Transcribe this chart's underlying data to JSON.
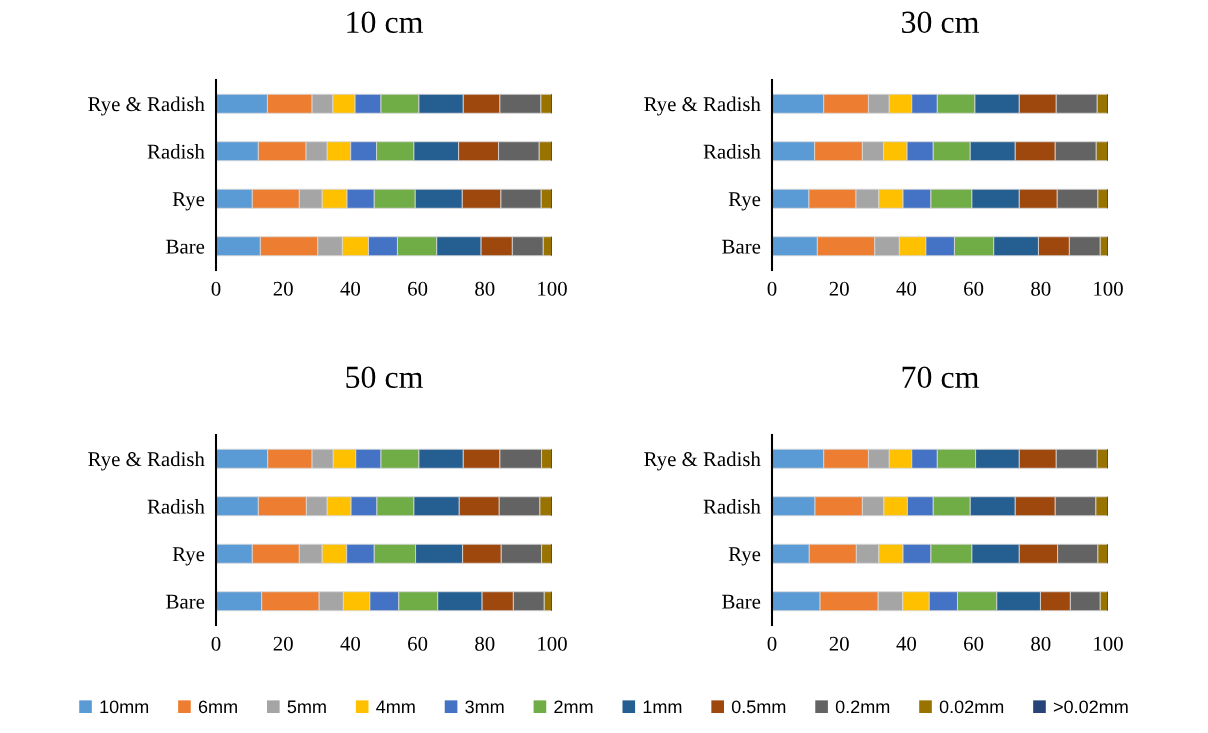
{
  "chart_data": [
    {
      "type": "bar",
      "orientation": "horizontal",
      "stacked": true,
      "title": "10 cm",
      "categories": [
        "Rye & Radish",
        "Radish",
        "Rye",
        "Bare"
      ],
      "xlim": [
        0,
        100
      ],
      "xticks": [
        0,
        20,
        40,
        60,
        80,
        100
      ],
      "grid": false,
      "legend": "bottom",
      "series": [
        {
          "name": "10mm",
          "color": "#5b9bd5",
          "values": [
            15.3,
            12.6,
            10.8,
            13.2
          ]
        },
        {
          "name": "6mm",
          "color": "#ed7d31",
          "values": [
            13.3,
            14.2,
            14.0,
            17.1
          ]
        },
        {
          "name": "5mm",
          "color": "#a5a5a5",
          "values": [
            6.2,
            6.3,
            6.8,
            7.3
          ]
        },
        {
          "name": "4mm",
          "color": "#ffc000",
          "values": [
            6.6,
            7.0,
            7.4,
            7.8
          ]
        },
        {
          "name": "3mm",
          "color": "#4472c4",
          "values": [
            7.7,
            7.7,
            8.1,
            8.6
          ]
        },
        {
          "name": "2mm",
          "color": "#70ad47",
          "values": [
            11.3,
            11.1,
            12.2,
            11.7
          ]
        },
        {
          "name": "1mm",
          "color": "#255e91",
          "values": [
            13.2,
            13.3,
            14.0,
            13.2
          ]
        },
        {
          "name": "0.5mm",
          "color": "#9e480e",
          "values": [
            10.9,
            11.9,
            11.5,
            9.3
          ]
        },
        {
          "name": "0.2mm",
          "color": "#636363",
          "values": [
            12.2,
            12.1,
            12.0,
            9.2
          ]
        },
        {
          "name": "0.02mm",
          "color": "#997300",
          "values": [
            3.3,
            3.8,
            3.2,
            2.6
          ]
        },
        {
          "name": ">0.02mm",
          "color": "#264478",
          "values": [
            0,
            0,
            0,
            0
          ]
        }
      ]
    },
    {
      "type": "bar",
      "orientation": "horizontal",
      "stacked": true,
      "title": "30 cm",
      "categories": [
        "Rye & Radish",
        "Radish",
        "Rye",
        "Bare"
      ],
      "xlim": [
        0,
        100
      ],
      "xticks": [
        0,
        20,
        40,
        60,
        80,
        100
      ],
      "grid": false,
      "series": [
        {
          "color": "#5b9bd5",
          "values": [
            15.4,
            12.7,
            11.0,
            13.5
          ]
        },
        {
          "color": "#ed7d31",
          "values": [
            13.3,
            14.2,
            14.0,
            17.1
          ]
        },
        {
          "color": "#a5a5a5",
          "values": [
            6.2,
            6.3,
            6.8,
            7.3
          ]
        },
        {
          "color": "#ffc000",
          "values": [
            6.7,
            7.0,
            7.2,
            7.9
          ]
        },
        {
          "color": "#4472c4",
          "values": [
            7.6,
            7.8,
            8.3,
            8.5
          ]
        },
        {
          "color": "#70ad47",
          "values": [
            11.2,
            11.0,
            12.2,
            11.7
          ]
        },
        {
          "color": "#255e91",
          "values": [
            13.2,
            13.4,
            14.1,
            13.3
          ]
        },
        {
          "color": "#9e480e",
          "values": [
            11.0,
            11.9,
            11.3,
            9.2
          ]
        },
        {
          "color": "#636363",
          "values": [
            12.2,
            12.2,
            12.1,
            9.2
          ]
        },
        {
          "color": "#997300",
          "values": [
            3.2,
            3.5,
            3.0,
            2.3
          ]
        },
        {
          "color": "#264478",
          "values": [
            0,
            0,
            0,
            0
          ]
        }
      ]
    },
    {
      "type": "bar",
      "orientation": "horizontal",
      "stacked": true,
      "title": "50 cm",
      "categories": [
        "Rye & Radish",
        "Radish",
        "Rye",
        "Bare"
      ],
      "xlim": [
        0,
        100
      ],
      "xticks": [
        0,
        20,
        40,
        60,
        80,
        100
      ],
      "grid": false,
      "series": [
        {
          "color": "#5b9bd5",
          "values": [
            15.4,
            12.6,
            10.8,
            13.6
          ]
        },
        {
          "color": "#ed7d31",
          "values": [
            13.2,
            14.3,
            14.0,
            17.1
          ]
        },
        {
          "color": "#a5a5a5",
          "values": [
            6.3,
            6.2,
            6.8,
            7.2
          ]
        },
        {
          "color": "#ffc000",
          "values": [
            6.7,
            7.1,
            7.3,
            7.9
          ]
        },
        {
          "color": "#4472c4",
          "values": [
            7.5,
            7.7,
            8.2,
            8.6
          ]
        },
        {
          "color": "#70ad47",
          "values": [
            11.3,
            11.0,
            12.3,
            11.6
          ]
        },
        {
          "color": "#255e91",
          "values": [
            13.2,
            13.5,
            14.0,
            13.2
          ]
        },
        {
          "color": "#9e480e",
          "values": [
            10.9,
            11.9,
            11.5,
            9.3
          ]
        },
        {
          "color": "#636363",
          "values": [
            12.4,
            12.1,
            12.0,
            9.2
          ]
        },
        {
          "color": "#997300",
          "values": [
            3.1,
            3.6,
            3.1,
            2.3
          ]
        },
        {
          "color": "#264478",
          "values": [
            0,
            0,
            0,
            0
          ]
        }
      ]
    },
    {
      "type": "bar",
      "orientation": "horizontal",
      "stacked": true,
      "title": "70 cm",
      "categories": [
        "Rye & Radish",
        "Radish",
        "Rye",
        "Bare"
      ],
      "xlim": [
        0,
        100
      ],
      "xticks": [
        0,
        20,
        40,
        60,
        80,
        100
      ],
      "grid": false,
      "series": [
        {
          "color": "#5b9bd5",
          "values": [
            15.4,
            12.8,
            11.1,
            14.3
          ]
        },
        {
          "color": "#ed7d31",
          "values": [
            13.3,
            14.1,
            14.0,
            17.3
          ]
        },
        {
          "color": "#a5a5a5",
          "values": [
            6.2,
            6.4,
            6.7,
            7.3
          ]
        },
        {
          "color": "#ffc000",
          "values": [
            6.7,
            7.0,
            7.2,
            7.9
          ]
        },
        {
          "color": "#4472c4",
          "values": [
            7.6,
            7.7,
            8.3,
            8.4
          ]
        },
        {
          "color": "#70ad47",
          "values": [
            11.4,
            11.0,
            12.2,
            11.7
          ]
        },
        {
          "color": "#255e91",
          "values": [
            13.0,
            13.4,
            14.1,
            13.0
          ]
        },
        {
          "color": "#9e480e",
          "values": [
            11.0,
            11.9,
            11.4,
            8.9
          ]
        },
        {
          "color": "#636363",
          "values": [
            12.2,
            12.1,
            12.0,
            8.9
          ]
        },
        {
          "color": "#997300",
          "values": [
            3.2,
            3.6,
            3.0,
            2.3
          ]
        },
        {
          "color": "#264478",
          "values": [
            0,
            0,
            0,
            0
          ]
        }
      ]
    }
  ]
}
